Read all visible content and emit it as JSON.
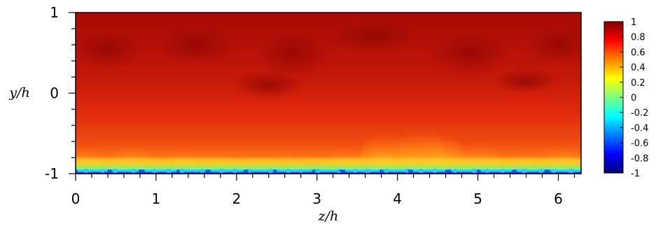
{
  "chart_data": {
    "type": "heatmap",
    "title": "",
    "xlabel": "z/h",
    "ylabel": "y/h",
    "xlim": [
      0,
      6.283
    ],
    "ylim": [
      -1,
      1
    ],
    "x_ticks": [
      "0",
      "1",
      "2",
      "3",
      "4",
      "5",
      "6"
    ],
    "y_ticks": [
      "-1",
      "0",
      "1"
    ],
    "colorbar": {
      "range": [
        -1,
        1
      ],
      "ticks": [
        "1",
        "0.8",
        "0.6",
        "0.4",
        "0.2",
        "0",
        "-0.2",
        "-0.4",
        "-0.6",
        "-0.8",
        "-1"
      ],
      "colormap": [
        "#00007f",
        "#0000ff",
        "#007fff",
        "#00ffff",
        "#7fff7f",
        "#ffff00",
        "#ff7f00",
        "#ff0000",
        "#7f0000"
      ]
    },
    "field_description": "scalar field near 1 in upper region, turbulent plumes near 0.4-0.8 above the bottom wall, values down to about -0.6 in a thin layer at y/h = -1",
    "plume_z": [
      0.15,
      0.7,
      1.35,
      1.75,
      2.3,
      2.75,
      3.35,
      3.85,
      4.3,
      4.55,
      5.05,
      5.6,
      6.05
    ],
    "plume_height": [
      0.35,
      0.38,
      0.33,
      0.3,
      0.28,
      0.22,
      0.34,
      0.55,
      0.6,
      0.52,
      0.4,
      0.32,
      0.38
    ]
  }
}
